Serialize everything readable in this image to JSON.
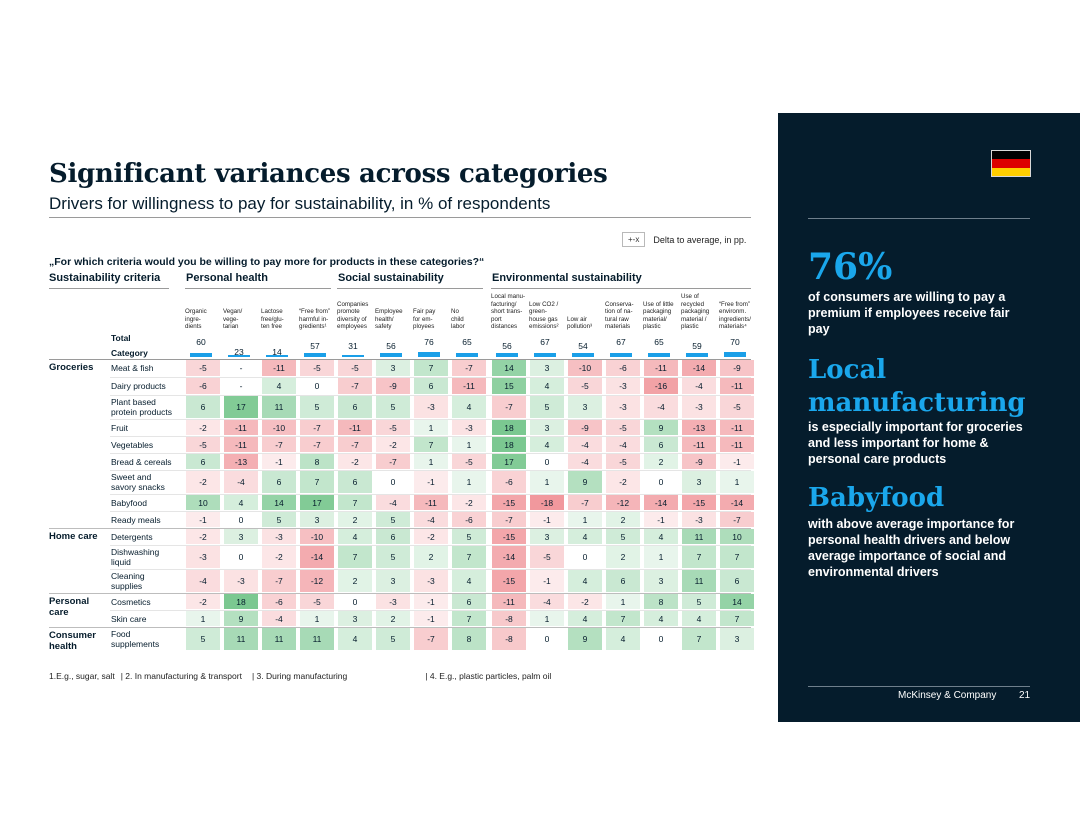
{
  "title": "Significant variances across categories",
  "subtitle": "Drivers for willingness to pay for sustainability, in % of respondents",
  "legend": {
    "box": "+-x",
    "text": "Delta to average, in pp."
  },
  "question": "„For which criteria would you be willing to pay more for products in these categories?“",
  "groups": {
    "criteria": "Sustainability criteria",
    "personal": "Personal health",
    "social": "Social sustainability",
    "env": "Environmental sustainability"
  },
  "columns": [
    "Organic\ningre-\ndients",
    "Vegan/\nvege-\ntarian",
    "Lactose\nfree/glu-\nten free",
    "“Free from”\nharmful in-\ngredients¹",
    "Companies\npromote\ndiversity of\nemployees",
    "Employee\nhealth/\nsafety",
    "Fair pay\nfor em-\nployees",
    "No\nchild\nlabor",
    "Local manu-\nfacturing/\nshort trans-\nport\ndistances",
    "Low CO2 /\ngreen-\nhouse gas\nemissions²",
    "Low air\npollution³",
    "Conserva-\ntion of na-\ntural raw\nmaterials",
    "Use of little\npackaging\nmaterial/\nplastic",
    "Use of\nrecycled\npackaging\nmaterial /\nplastic",
    "“Free from”\nenvironm.\ningredients/\nmaterials⁴"
  ],
  "total_label": "Total",
  "category_label": "Category",
  "totals": [
    60,
    23,
    14,
    57,
    31,
    56,
    76,
    65,
    56,
    67,
    54,
    67,
    65,
    59,
    70
  ],
  "sections": [
    {
      "label": "Groceries",
      "rows": [
        {
          "name": "Meat & fish",
          "values": [
            -5,
            "-",
            -11,
            -5,
            -5,
            3,
            7,
            -7,
            14,
            3,
            -10,
            -6,
            -11,
            -14,
            -9
          ]
        },
        {
          "name": "Dairy products",
          "values": [
            -6,
            "-",
            4,
            0,
            -7,
            -9,
            6,
            -11,
            15,
            4,
            -5,
            -3,
            -16,
            -4,
            -11
          ]
        },
        {
          "name": "Plant based\nprotein products",
          "values": [
            6,
            17,
            11,
            5,
            6,
            5,
            -3,
            4,
            -7,
            5,
            3,
            -3,
            -4,
            -3,
            -5
          ]
        },
        {
          "name": "Fruit",
          "values": [
            -2,
            -11,
            -10,
            -7,
            -11,
            -5,
            1,
            -3,
            18,
            3,
            -9,
            -5,
            9,
            -13,
            -11
          ]
        },
        {
          "name": "Vegetables",
          "values": [
            -5,
            -11,
            -7,
            -7,
            -7,
            -2,
            7,
            1,
            18,
            4,
            -4,
            -4,
            6,
            -11,
            -11
          ]
        },
        {
          "name": "Bread & cereals",
          "values": [
            6,
            -13,
            -1,
            8,
            -2,
            -7,
            1,
            -5,
            17,
            0,
            -4,
            -5,
            2,
            -9,
            -1
          ]
        },
        {
          "name": "Sweet and\nsavory snacks",
          "values": [
            -2,
            -4,
            6,
            7,
            6,
            0,
            -1,
            1,
            -6,
            1,
            9,
            -2,
            0,
            3,
            1
          ]
        },
        {
          "name": "Babyfood",
          "values": [
            10,
            4,
            14,
            17,
            7,
            -4,
            -11,
            -2,
            -15,
            -18,
            -7,
            -12,
            -14,
            -15,
            -14
          ]
        },
        {
          "name": "Ready meals",
          "values": [
            -1,
            0,
            5,
            3,
            2,
            5,
            -4,
            -6,
            -7,
            -1,
            1,
            2,
            -1,
            -3,
            -7
          ]
        }
      ]
    },
    {
      "label": "Home care",
      "rows": [
        {
          "name": "Detergents",
          "values": [
            -2,
            3,
            -3,
            -10,
            4,
            6,
            -2,
            5,
            -15,
            3,
            4,
            5,
            4,
            11,
            10
          ]
        },
        {
          "name": "Dishwashing\nliquid",
          "values": [
            -3,
            0,
            -2,
            -14,
            7,
            5,
            2,
            7,
            -14,
            -5,
            0,
            2,
            1,
            7,
            7
          ]
        },
        {
          "name": "Cleaning\nsupplies",
          "values": [
            -4,
            -3,
            -7,
            -12,
            2,
            3,
            -3,
            4,
            -15,
            -1,
            4,
            6,
            3,
            11,
            6
          ]
        }
      ]
    },
    {
      "label": "Personal\ncare",
      "rows": [
        {
          "name": "Cosmetics",
          "values": [
            -2,
            18,
            -6,
            -5,
            0,
            -3,
            -1,
            6,
            -11,
            -4,
            -2,
            1,
            8,
            5,
            14
          ]
        },
        {
          "name": "Skin care",
          "values": [
            1,
            9,
            -4,
            1,
            3,
            2,
            -1,
            7,
            -8,
            1,
            4,
            7,
            4,
            4,
            7
          ]
        }
      ]
    },
    {
      "label": "Consumer\nhealth",
      "rows": [
        {
          "name": "Food\nsupplements",
          "values": [
            5,
            11,
            11,
            11,
            4,
            5,
            -7,
            8,
            -8,
            0,
            9,
            4,
            0,
            7,
            3
          ]
        }
      ]
    }
  ],
  "footnotes": [
    "1.E.g., sugar, salt",
    "| 2. In manufacturing & transport",
    "| 3. During manufacturing",
    "| 4. E.g., plastic particles, palm oil"
  ],
  "panel": {
    "stat": "76%",
    "stat_text": "of consumers are willing to pay a premium if employees receive fair pay",
    "h2": "Local manufacturing",
    "h2_text": "is especially important for groceries and less important for home & personal care products",
    "h3": "Babyfood",
    "h3_text": "with above average importance for personal health drivers and below average importance of social and environmental drivers",
    "flag_colors": [
      "#000000",
      "#dd0000",
      "#ffce00"
    ]
  },
  "footer": {
    "brand": "McKinsey & Company",
    "page": "21"
  },
  "colors": {
    "positive": "#1e9e4a",
    "negative": "#e0303a",
    "accent": "#1aa7ec",
    "panel_bg": "#051c2c"
  }
}
